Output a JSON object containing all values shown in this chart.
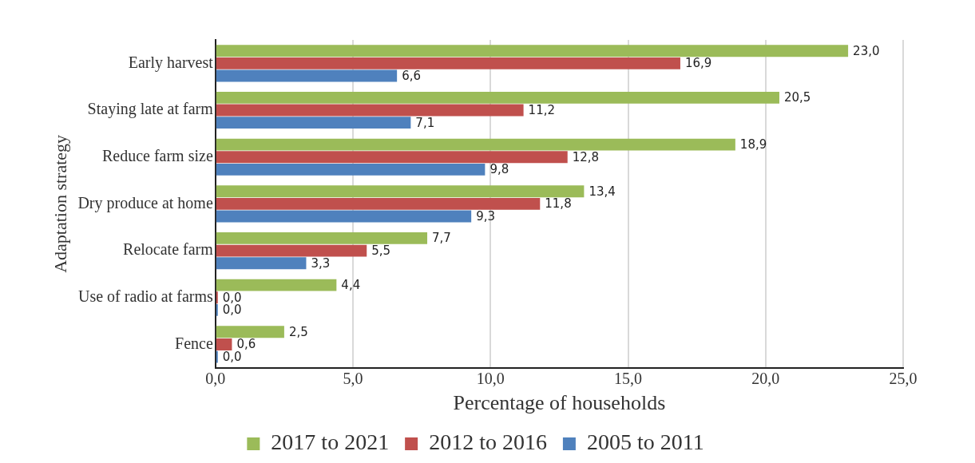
{
  "chart_data": {
    "type": "bar",
    "orientation": "horizontal",
    "xlabel": "Percentage of households",
    "ylabel": "Adaptation strategy",
    "categories": [
      "Early harvest",
      "Staying late at farm",
      "Reduce farm size",
      "Dry produce at home",
      "Relocate farm",
      "Use of radio at farms",
      "Fence"
    ],
    "series": [
      {
        "name": "2017 to 2021",
        "color": "#9bbb59",
        "values": [
          23.0,
          20.5,
          18.9,
          13.4,
          7.7,
          4.4,
          2.5
        ],
        "value_labels": [
          "23,0",
          "20,5",
          "18,9",
          "13,4",
          "7,7",
          "4,4",
          "2,5"
        ]
      },
      {
        "name": "2012 to 2016",
        "color": "#c0504d",
        "values": [
          16.9,
          11.2,
          12.8,
          11.8,
          5.5,
          0.0,
          0.6
        ],
        "value_labels": [
          "16,9",
          "11,2",
          "12,8",
          "11,8",
          "5,5",
          "0,0",
          "0,6"
        ]
      },
      {
        "name": "2005 to 2011",
        "color": "#4f81bd",
        "values": [
          6.6,
          7.1,
          9.8,
          9.3,
          3.3,
          0.0,
          0.0
        ],
        "value_labels": [
          "6,6",
          "7,1",
          "9,8",
          "9,3",
          "3,3",
          "0,0",
          "0,0"
        ]
      }
    ],
    "xlim": [
      0,
      25
    ],
    "xticks": [
      {
        "value": 0,
        "label": "0,0"
      },
      {
        "value": 5,
        "label": "5,0"
      },
      {
        "value": 10,
        "label": "10,0"
      },
      {
        "value": 15,
        "label": "15,0"
      },
      {
        "value": 20,
        "label": "20,0"
      },
      {
        "value": 25,
        "label": "25,0"
      }
    ],
    "grid": "x",
    "legend": "bottom"
  }
}
